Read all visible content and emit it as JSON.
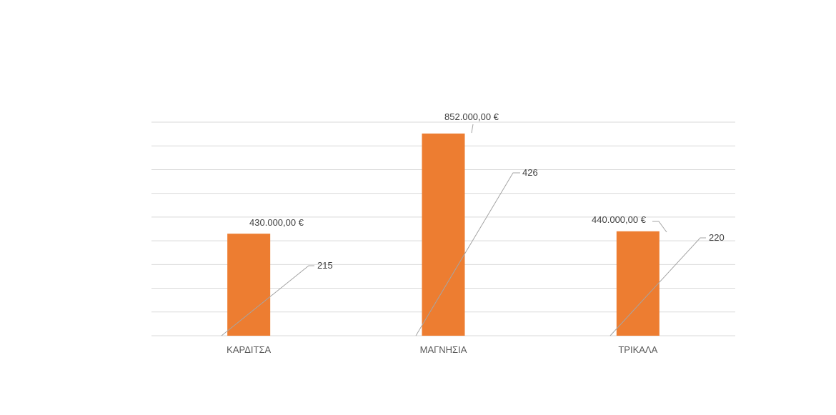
{
  "chart_data": {
    "type": "bar",
    "categories": [
      "ΚΑΡΔΙΤΣΑ",
      "ΜΑΓΝΗΣΙΑ",
      "ΤΡΙΚΑΛΑ"
    ],
    "series": [
      {
        "values": [
          430000,
          852000,
          440000
        ],
        "labels": [
          "430.000,00 €",
          "852.000,00 €",
          "440.000,00 €"
        ],
        "color": "#ED7D31"
      },
      {
        "values": [
          215,
          426,
          220
        ],
        "labels": [
          "215",
          "426",
          "220"
        ],
        "color": "#A5A5A5"
      }
    ],
    "title": "",
    "xlabel": "",
    "ylabel": "",
    "ylim": [
      0,
      900000
    ],
    "ytick_step": 100000,
    "grid": true,
    "gridline_color": "#D9D9D9",
    "legend": "none"
  }
}
